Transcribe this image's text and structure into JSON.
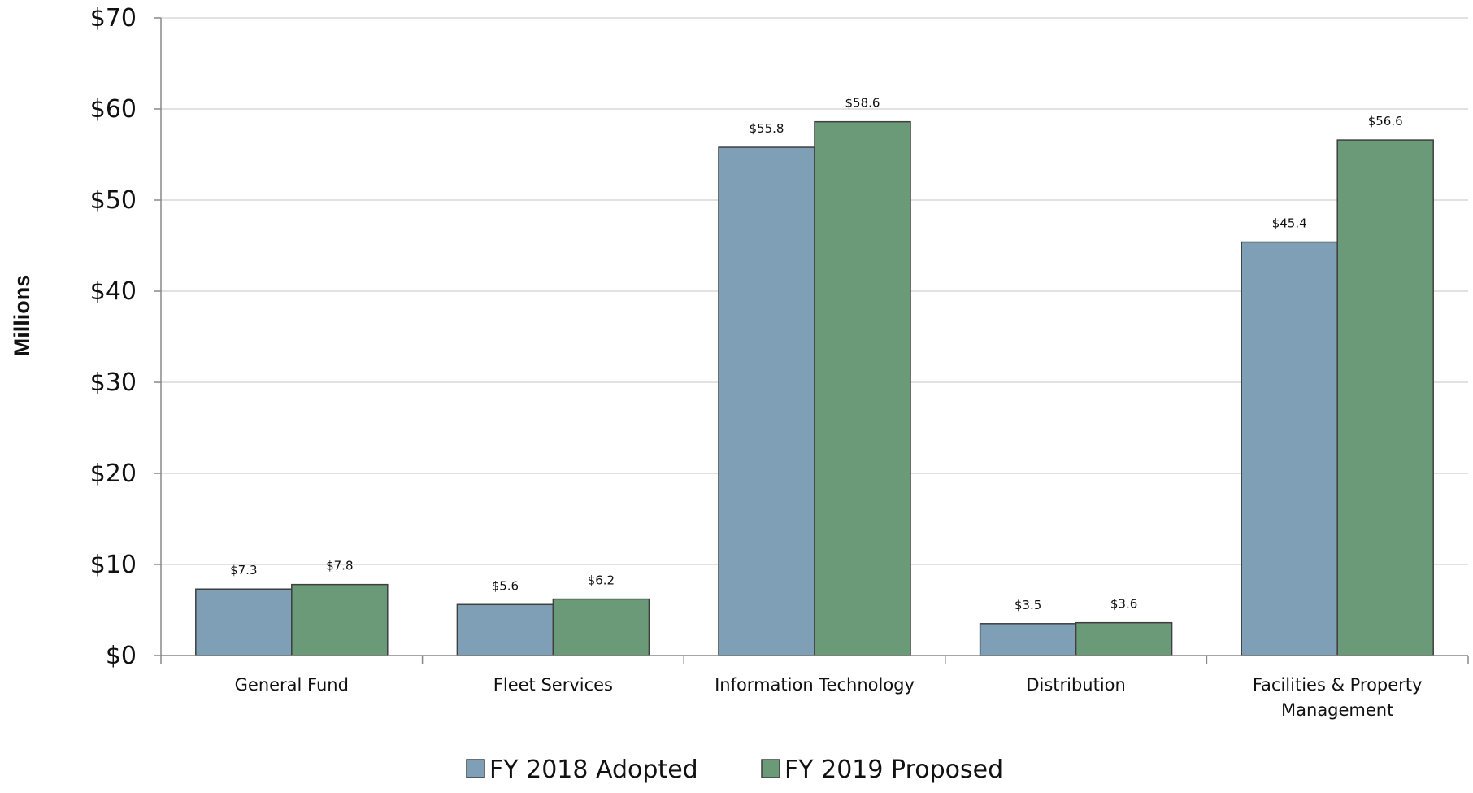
{
  "chart_data": {
    "type": "bar",
    "categories": [
      [
        "General Fund"
      ],
      [
        "Fleet Services"
      ],
      [
        "Information Technology"
      ],
      [
        "Distribution"
      ],
      [
        "Facilities & Property",
        "Management"
      ]
    ],
    "series": [
      {
        "name": "FY 2018 Adopted",
        "color": "#7f9fb6",
        "values": [
          7.3,
          5.6,
          55.8,
          3.5,
          45.4
        ],
        "labels": [
          "$7.3",
          "$5.6",
          "$55.8",
          "$3.5",
          "$45.4"
        ]
      },
      {
        "name": "FY 2019 Proposed",
        "color": "#6a9a78",
        "values": [
          7.8,
          6.2,
          58.6,
          3.6,
          56.6
        ],
        "labels": [
          "$7.8",
          "$6.2",
          "$58.6",
          "$3.6",
          "$56.6"
        ]
      }
    ],
    "ylabel": "Millions",
    "ylim": [
      0,
      70
    ],
    "yticks": [
      0,
      10,
      20,
      30,
      40,
      50,
      60,
      70
    ],
    "ytick_labels": [
      "$0",
      "$10",
      "$20",
      "$30",
      "$40",
      "$50",
      "$60",
      "$70"
    ],
    "grid": true,
    "legend": "bottom-center"
  }
}
